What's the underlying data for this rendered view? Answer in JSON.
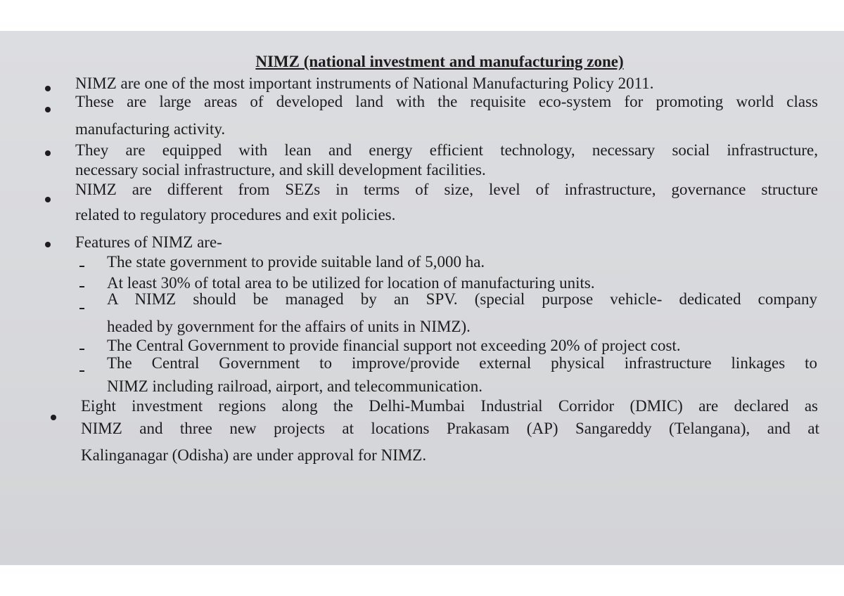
{
  "title": "NIMZ (national investment and manufacturing zone)",
  "bullets": [
    {
      "lines": [
        "NIMZ are one of the most important instruments of National Manufacturing Policy 2011."
      ]
    },
    {
      "lines": [
        "These are large areas of developed land with the requisite eco-system for promoting world class",
        "manufacturing activity."
      ]
    },
    {
      "lines": [
        "They are equipped with lean and energy efficient technology, necessary social infrastructure,",
        "necessary social infrastructure, and skill development facilities."
      ]
    },
    {
      "lines": [
        "NIMZ are different from SEZs in terms of size, level of infrastructure, governance structure",
        "related to regulatory procedures and exit policies."
      ]
    },
    {
      "lines": [
        "Features of NIMZ are-"
      ]
    },
    {
      "lines": [
        "Eight investment regions along the Delhi-Mumbai Industrial Corridor (DMIC) are declared as",
        "NIMZ and three new projects at locations Prakasam (AP) Sangareddy (Telangana), and at",
        "Kalinganagar (Odisha) are under approval for NIMZ."
      ]
    }
  ],
  "features": [
    {
      "lines": [
        "The state government to provide suitable land of 5,000 ha."
      ]
    },
    {
      "lines": [
        "At least 30% of total area to be utilized for location of manufacturing units."
      ]
    },
    {
      "lines": [
        "A NIMZ should be managed by an SPV. (special purpose vehicle- dedicated company",
        "headed by government for the affairs of units in NIMZ)."
      ]
    },
    {
      "lines": [
        "The Central Government to provide financial support not exceeding 20% of project cost."
      ]
    },
    {
      "lines": [
        "The Central Government to improve/provide external physical infrastructure linkages to",
        "NIMZ including railroad, airport, and telecommunication."
      ]
    }
  ]
}
